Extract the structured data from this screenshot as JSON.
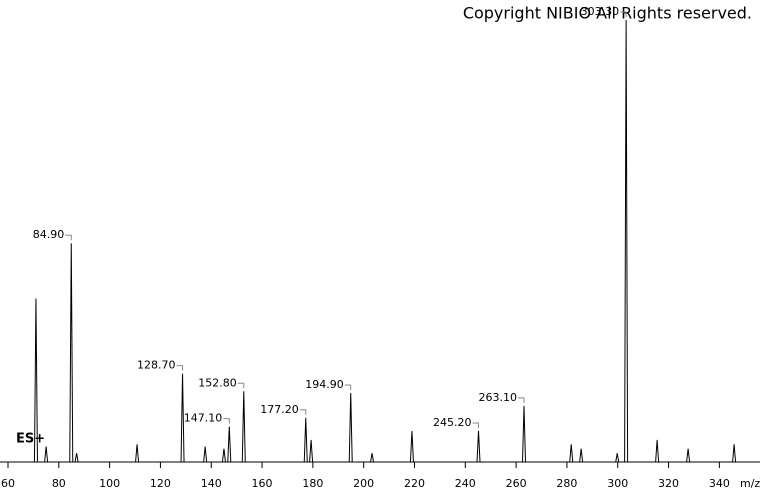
{
  "chart_data": {
    "type": "spectrum",
    "title": "Copyright NIBIO All Rights reserved.",
    "annotation": "ES+",
    "x_label": "m/z",
    "x": [
      71.0,
      75.0,
      84.9,
      87.0,
      110.8,
      128.7,
      137.6,
      145.0,
      147.1,
      152.8,
      177.2,
      179.3,
      194.9,
      203.3,
      219.0,
      245.2,
      263.1,
      281.7,
      285.6,
      299.8,
      303.3,
      315.5,
      327.7,
      345.8
    ],
    "values": [
      37,
      3.5,
      49.5,
      2,
      4,
      20,
      3.5,
      3,
      8,
      16,
      10,
      5,
      15.6,
      2,
      7,
      7,
      12.7,
      4,
      3,
      2,
      100,
      5,
      3,
      4
    ],
    "x_labels": [
      null,
      null,
      "84.90",
      null,
      null,
      "128.70",
      null,
      null,
      "147.10",
      "152.80",
      "177.20",
      null,
      "194.90",
      null,
      null,
      "245.20",
      "263.10",
      null,
      null,
      null,
      "303.30",
      null,
      null,
      null
    ],
    "color": "#000000",
    "xlim": [
      56.85,
      356
    ],
    "ylim": [
      0,
      100
    ],
    "xticks": [
      60,
      80,
      100,
      120,
      140,
      160,
      180,
      200,
      220,
      240,
      260,
      280,
      300,
      320,
      340
    ]
  }
}
